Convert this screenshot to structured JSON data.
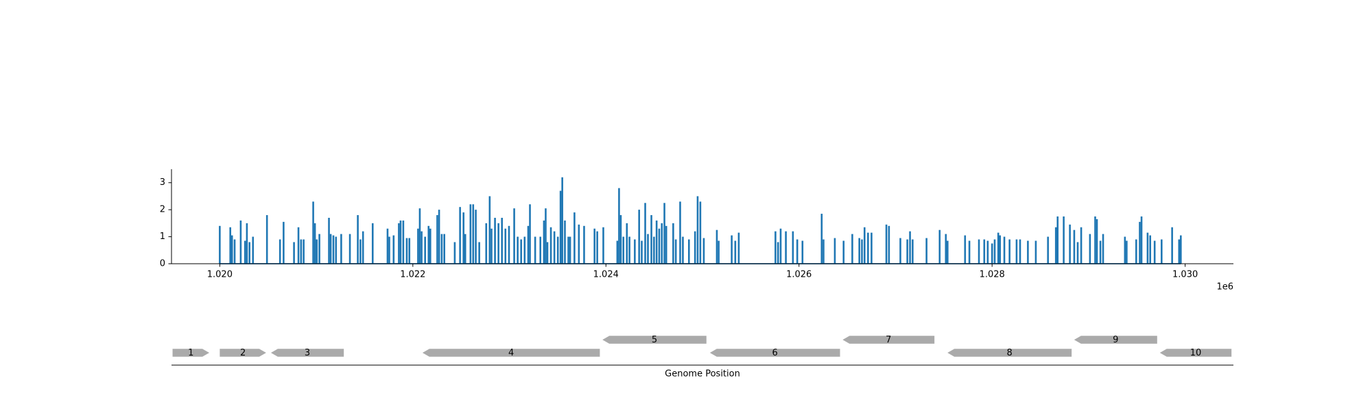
{
  "chart_data": [
    {
      "type": "coverage",
      "color": "#1f77b4",
      "x": [
        1020000,
        1020109,
        1020127,
        1020154,
        1020217,
        1020262,
        1020281,
        1020308,
        1020344,
        1020489,
        1020624,
        1020661,
        1020769,
        1020815,
        1020842,
        1020869,
        1020968,
        1020986,
        1021005,
        1021032,
        1021131,
        1021149,
        1021177,
        1021204,
        1021258,
        1021348,
        1021430,
        1021457,
        1021484,
        1021584,
        1021738,
        1021756,
        1021801,
        1021855,
        1021873,
        1021901,
        1021937,
        1021964,
        1022054,
        1022072,
        1022091,
        1022127,
        1022163,
        1022181,
        1022253,
        1022272,
        1022299,
        1022326,
        1022434,
        1022489,
        1022525,
        1022543,
        1022597,
        1022625,
        1022652,
        1022688,
        1022760,
        1022796,
        1022815,
        1022851,
        1022887,
        1022923,
        1022959,
        1022996,
        1023050,
        1023086,
        1023122,
        1023158,
        1023195,
        1023213,
        1023267,
        1023321,
        1023358,
        1023376,
        1023394,
        1023430,
        1023466,
        1023502,
        1023530,
        1023548,
        1023575,
        1023611,
        1023629,
        1023674,
        1023720,
        1023774,
        1023882,
        1023910,
        1023973,
        1024118,
        1024136,
        1024154,
        1024181,
        1024217,
        1024244,
        1024299,
        1024344,
        1024371,
        1024407,
        1024435,
        1024471,
        1024498,
        1024525,
        1024552,
        1024579,
        1024606,
        1024625,
        1024697,
        1024724,
        1024769,
        1024797,
        1024860,
        1024923,
        1024950,
        1024978,
        1025014,
        1025149,
        1025168,
        1025303,
        1025340,
        1025376,
        1025756,
        1025783,
        1025810,
        1025864,
        1025937,
        1025982,
        1026036,
        1026235,
        1026254,
        1026371,
        1026462,
        1026552,
        1026625,
        1026652,
        1026679,
        1026715,
        1026751,
        1026905,
        1026932,
        1027050,
        1027122,
        1027150,
        1027177,
        1027321,
        1027457,
        1027521,
        1027539,
        1027720,
        1027765,
        1027864,
        1027919,
        1027955,
        1028000,
        1028027,
        1028064,
        1028082,
        1028127,
        1028181,
        1028254,
        1028290,
        1028371,
        1028453,
        1028579,
        1028661,
        1028679,
        1028742,
        1028806,
        1028851,
        1028887,
        1028923,
        1029014,
        1029068,
        1029086,
        1029122,
        1029150,
        1029376,
        1029394,
        1029493,
        1029530,
        1029548,
        1029611,
        1029638,
        1029684,
        1029756,
        1029865,
        1029937,
        1029955
      ],
      "values": [
        1.4,
        1.35,
        1.05,
        0.9,
        1.6,
        0.85,
        1.5,
        0.8,
        1.0,
        1.8,
        0.9,
        1.55,
        0.8,
        1.35,
        0.9,
        0.9,
        2.3,
        1.5,
        0.9,
        1.1,
        1.7,
        1.1,
        1.05,
        1.0,
        1.1,
        1.1,
        1.8,
        0.9,
        1.2,
        1.5,
        1.3,
        1.0,
        1.05,
        1.5,
        1.6,
        1.6,
        0.95,
        0.95,
        1.3,
        2.05,
        1.2,
        1.0,
        1.4,
        1.3,
        1.8,
        2.0,
        1.1,
        1.1,
        0.8,
        2.1,
        1.9,
        1.1,
        2.2,
        2.2,
        2.0,
        0.8,
        1.5,
        2.5,
        1.3,
        1.7,
        1.5,
        1.7,
        1.3,
        1.4,
        2.05,
        1.0,
        0.9,
        1.0,
        1.4,
        2.2,
        1.0,
        1.0,
        1.6,
        2.05,
        0.8,
        1.35,
        1.2,
        1.0,
        2.7,
        3.2,
        1.6,
        1.0,
        1.0,
        1.9,
        1.45,
        1.4,
        1.3,
        1.2,
        1.35,
        0.85,
        2.8,
        1.8,
        1.0,
        1.5,
        1.0,
        0.9,
        2.0,
        0.85,
        2.25,
        1.1,
        1.8,
        1.0,
        1.6,
        1.3,
        1.5,
        2.25,
        1.4,
        1.5,
        0.9,
        2.3,
        1.0,
        0.9,
        1.2,
        2.5,
        2.3,
        0.95,
        1.25,
        0.85,
        1.05,
        0.85,
        1.15,
        1.2,
        0.8,
        1.3,
        1.2,
        1.2,
        0.9,
        0.85,
        1.85,
        0.9,
        0.95,
        0.85,
        1.1,
        0.95,
        0.9,
        1.35,
        1.15,
        1.15,
        1.45,
        1.4,
        0.95,
        0.9,
        1.2,
        0.9,
        0.95,
        1.25,
        1.1,
        0.85,
        1.05,
        0.85,
        0.9,
        0.9,
        0.85,
        0.75,
        0.9,
        1.15,
        1.05,
        1.0,
        0.9,
        0.9,
        0.9,
        0.85,
        0.85,
        1.0,
        1.35,
        1.75,
        1.75,
        1.45,
        1.25,
        0.8,
        1.35,
        1.1,
        1.75,
        1.65,
        0.85,
        1.1,
        1.0,
        0.85,
        0.9,
        1.55,
        1.75,
        1.15,
        1.05,
        0.85,
        0.9,
        1.35,
        0.9,
        1.05
      ],
      "xlim": [
        1019500,
        1030500
      ],
      "ylim": [
        0,
        3.5
      ],
      "xticks": [
        {
          "value": 1020000,
          "label": "1.020"
        },
        {
          "value": 1022000,
          "label": "1.022"
        },
        {
          "value": 1024000,
          "label": "1.024"
        },
        {
          "value": 1026000,
          "label": "1.026"
        },
        {
          "value": 1028000,
          "label": "1.028"
        },
        {
          "value": 1030000,
          "label": "1.030"
        }
      ],
      "yticks": [
        0,
        1,
        2,
        3
      ],
      "x_offset_label": "1e6"
    },
    {
      "type": "features",
      "color": "#aaaaaa",
      "xlim": [
        1019500,
        1030500
      ],
      "xlabel": "Genome Position",
      "features": [
        {
          "label": "1",
          "start": 1019511,
          "end": 1019891,
          "strand": 1
        },
        {
          "label": "2",
          "start": 1020000,
          "end": 1020480,
          "strand": 1
        },
        {
          "label": "3",
          "start": 1020530,
          "end": 1021285,
          "strand": -1
        },
        {
          "label": "4",
          "start": 1022100,
          "end": 1023937,
          "strand": -1
        },
        {
          "label": "5",
          "start": 1023964,
          "end": 1025041,
          "strand": -1
        },
        {
          "label": "6",
          "start": 1025077,
          "end": 1026425,
          "strand": -1
        },
        {
          "label": "7",
          "start": 1026452,
          "end": 1027403,
          "strand": -1
        },
        {
          "label": "8",
          "start": 1027538,
          "end": 1028824,
          "strand": -1
        },
        {
          "label": "9",
          "start": 1028850,
          "end": 1029710,
          "strand": -1
        },
        {
          "label": "10",
          "start": 1029738,
          "end": 1030480,
          "strand": -1
        }
      ]
    }
  ]
}
